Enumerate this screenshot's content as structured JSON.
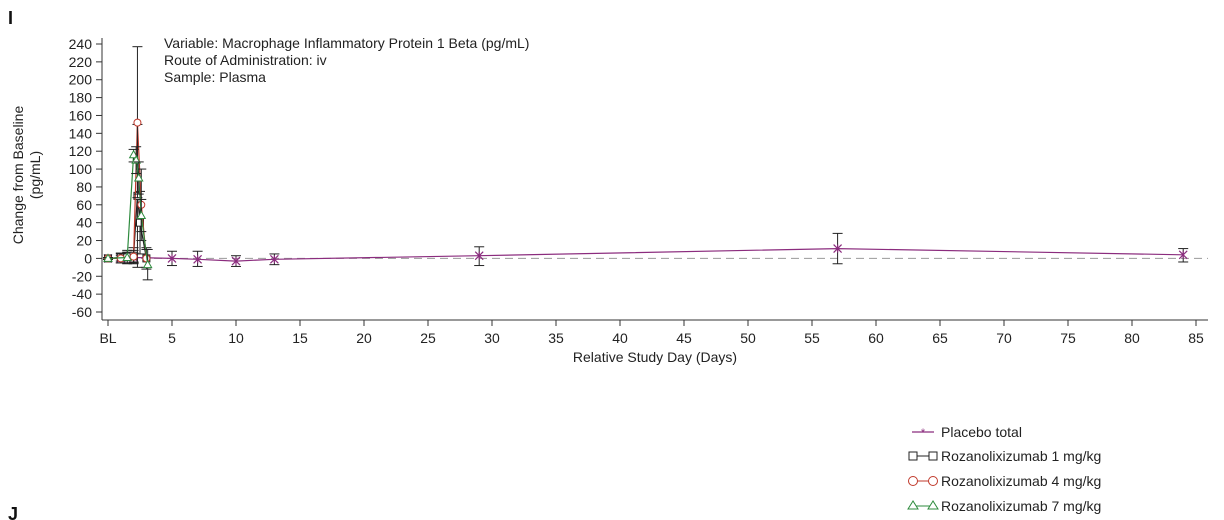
{
  "panel_label": "I",
  "next_panel_label": "J",
  "chart_data": {
    "type": "line",
    "annotations": [
      "Variable: Macrophage Inflammatory Protein 1 Beta (pg/mL)",
      "Route of Administration: iv",
      "Sample: Plasma"
    ],
    "ylabel": "Change from Baseline",
    "ylabel_unit": "(pg/mL)",
    "xlabel": "Relative Study Day (Days)",
    "xlim": [
      0,
      85
    ],
    "ylim": [
      -60,
      240
    ],
    "x_ticks": [
      0,
      5,
      10,
      15,
      20,
      25,
      30,
      35,
      40,
      45,
      50,
      55,
      60,
      65,
      70,
      75,
      80,
      85
    ],
    "x_tick_labels": [
      "BL",
      "5",
      "10",
      "15",
      "20",
      "25",
      "30",
      "35",
      "40",
      "45",
      "50",
      "55",
      "60",
      "65",
      "70",
      "75",
      "80",
      "85"
    ],
    "y_ticks": [
      -60,
      -40,
      -20,
      0,
      20,
      40,
      60,
      80,
      100,
      120,
      140,
      160,
      180,
      200,
      220,
      240
    ],
    "y_tick_labels": [
      "-60",
      "-40",
      "-20",
      "0",
      "20",
      "40",
      "60",
      "80",
      "100",
      "120",
      "140",
      "160",
      "180",
      "200",
      "220",
      "240"
    ],
    "reference_line": {
      "y": 0,
      "style": "dashed"
    },
    "grid": false,
    "legend_position": "bottom-right",
    "series": [
      {
        "name": "Placebo total",
        "color": "#8b2c7e",
        "marker": "star",
        "points": [
          {
            "x": 0,
            "y": 0,
            "lo": -1,
            "hi": 1
          },
          {
            "x": 1,
            "y": 0,
            "lo": -3,
            "hi": 3
          },
          {
            "x": 2,
            "y": 1,
            "lo": -4,
            "hi": 6
          },
          {
            "x": 5,
            "y": 0,
            "lo": -8,
            "hi": 8
          },
          {
            "x": 7,
            "y": -1,
            "lo": -9,
            "hi": 8
          },
          {
            "x": 10,
            "y": -3,
            "lo": -9,
            "hi": 3
          },
          {
            "x": 13,
            "y": -1,
            "lo": -7,
            "hi": 5
          },
          {
            "x": 29,
            "y": 3,
            "lo": -8,
            "hi": 13
          },
          {
            "x": 57,
            "y": 11,
            "lo": -6,
            "hi": 28
          },
          {
            "x": 84,
            "y": 4,
            "lo": -4,
            "hi": 11
          }
        ]
      },
      {
        "name": "Rozanolixizumab 1 mg/kg",
        "color": "#222222",
        "marker": "square",
        "points": [
          {
            "x": 0,
            "y": 0,
            "lo": -1,
            "hi": 1
          },
          {
            "x": 1,
            "y": 1,
            "lo": -5,
            "hi": 6
          },
          {
            "x": 1.5,
            "y": 2,
            "lo": -6,
            "hi": 9
          },
          {
            "x": 2,
            "y": 3,
            "lo": -6,
            "hi": 12
          },
          {
            "x": 2.3,
            "y": 70,
            "lo": -10,
            "hi": 150
          },
          {
            "x": 2.5,
            "y": 40,
            "lo": 5,
            "hi": 75
          },
          {
            "x": 3,
            "y": 0,
            "lo": -12,
            "hi": 12
          }
        ]
      },
      {
        "name": "Rozanolixizumab 4 mg/kg",
        "color": "#c0392b",
        "marker": "circle",
        "points": [
          {
            "x": 0,
            "y": 0,
            "lo": -1,
            "hi": 1
          },
          {
            "x": 1,
            "y": 0,
            "lo": -5,
            "hi": 5
          },
          {
            "x": 2,
            "y": 2,
            "lo": -5,
            "hi": 9
          },
          {
            "x": 2.3,
            "y": 152,
            "lo": 68,
            "hi": 237
          },
          {
            "x": 2.6,
            "y": 60,
            "lo": 20,
            "hi": 100
          },
          {
            "x": 3,
            "y": 0,
            "lo": -10,
            "hi": 10
          }
        ]
      },
      {
        "name": "Rozanolixizumab 7 mg/kg",
        "color": "#2e8b3e",
        "marker": "triangle",
        "points": [
          {
            "x": 0,
            "y": 0,
            "lo": -1,
            "hi": 1
          },
          {
            "x": 1.5,
            "y": 1,
            "lo": -5,
            "hi": 7
          },
          {
            "x": 2,
            "y": 116,
            "lo": 108,
            "hi": 122
          },
          {
            "x": 2.2,
            "y": 110,
            "lo": 95,
            "hi": 125
          },
          {
            "x": 2.4,
            "y": 90,
            "lo": 72,
            "hi": 108
          },
          {
            "x": 2.6,
            "y": 48,
            "lo": 30,
            "hi": 66
          },
          {
            "x": 3.1,
            "y": -7,
            "lo": -24,
            "hi": 10
          }
        ]
      }
    ]
  }
}
